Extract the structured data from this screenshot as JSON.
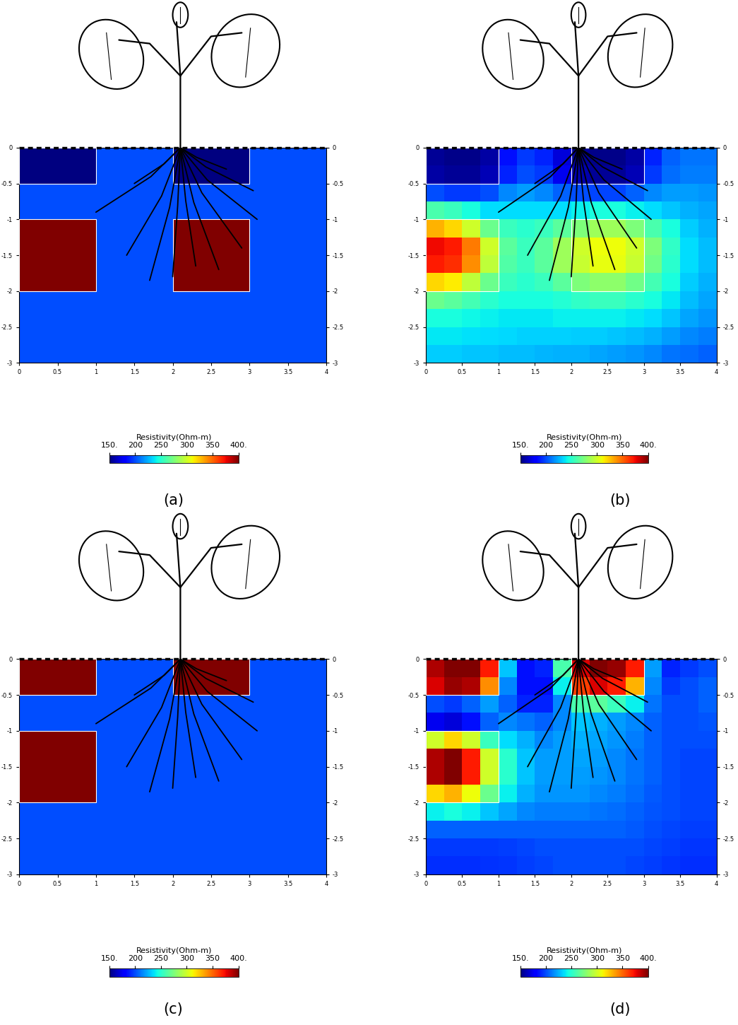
{
  "chart_data": [
    {
      "type": "heatmap",
      "title": "(a)",
      "x_edges": [
        0,
        0.5,
        1,
        1.5,
        2,
        2.5,
        3,
        3.5,
        4
      ],
      "y_edges": [
        0,
        -0.5,
        -1,
        -1.5,
        -2,
        -2.5,
        -3
      ],
      "cells": [
        [
          150,
          150,
          200,
          200,
          150,
          150,
          200,
          200
        ],
        [
          200,
          200,
          200,
          200,
          200,
          200,
          200,
          200
        ],
        [
          400,
          400,
          200,
          200,
          400,
          400,
          200,
          200
        ],
        [
          400,
          400,
          200,
          200,
          400,
          400,
          200,
          200
        ],
        [
          200,
          200,
          200,
          200,
          200,
          200,
          200,
          200
        ],
        [
          200,
          200,
          200,
          200,
          200,
          200,
          200,
          200
        ]
      ],
      "outlines": [
        [
          0,
          1,
          -0.5,
          0
        ],
        [
          2,
          3,
          -0.5,
          0
        ],
        [
          0,
          1,
          -2,
          -1
        ],
        [
          2,
          3,
          -2,
          -1
        ]
      ],
      "xlim": [
        0,
        4
      ],
      "ylim": [
        -3,
        0
      ],
      "xticks": [
        0,
        0.5,
        1,
        1.5,
        2,
        2.5,
        3,
        3.5,
        4
      ],
      "yticks": [
        -3,
        -2.5,
        -2,
        -1.5,
        -1,
        -0.5,
        0
      ],
      "colorbar": {
        "label": "Resistivity(Ohm-m)",
        "range": [
          150,
          400
        ],
        "ticks": [
          {
            "value": 150,
            "label": "150."
          },
          200,
          250,
          300,
          350,
          {
            "value": 400,
            "label": "400."
          }
        ]
      }
    },
    {
      "type": "heatmap",
      "title": "(b)",
      "x_edges": [
        0,
        0.25,
        0.5,
        0.75,
        1,
        1.25,
        1.5,
        1.75,
        2,
        2.25,
        2.5,
        2.75,
        3,
        3.25,
        3.5,
        3.75,
        4
      ],
      "y_edges": [
        0,
        -0.25,
        -0.5,
        -0.75,
        -1,
        -1.25,
        -1.5,
        -1.75,
        -2,
        -2.25,
        -2.5,
        -2.75,
        -3
      ],
      "cells": [
        [
          155,
          152,
          152,
          158,
          185,
          195,
          190,
          170,
          155,
          152,
          152,
          158,
          190,
          205,
          210,
          210
        ],
        [
          158,
          155,
          155,
          162,
          190,
          200,
          195,
          175,
          160,
          155,
          155,
          162,
          195,
          208,
          212,
          212
        ],
        [
          200,
          195,
          195,
          200,
          215,
          220,
          215,
          205,
          200,
          198,
          198,
          205,
          215,
          220,
          220,
          218
        ],
        [
          260,
          255,
          245,
          235,
          235,
          235,
          235,
          235,
          240,
          245,
          245,
          240,
          235,
          230,
          225,
          222
        ],
        [
          330,
          320,
          300,
          270,
          255,
          250,
          255,
          265,
          275,
          285,
          285,
          275,
          260,
          245,
          232,
          225
        ],
        [
          375,
          370,
          345,
          300,
          265,
          255,
          265,
          285,
          300,
          310,
          310,
          300,
          275,
          252,
          235,
          228
        ],
        [
          370,
          365,
          340,
          295,
          262,
          255,
          265,
          285,
          298,
          308,
          308,
          298,
          272,
          250,
          235,
          228
        ],
        [
          320,
          315,
          295,
          270,
          255,
          250,
          255,
          265,
          275,
          280,
          280,
          272,
          258,
          245,
          232,
          225
        ],
        [
          270,
          265,
          258,
          250,
          245,
          245,
          245,
          248,
          252,
          255,
          255,
          250,
          245,
          238,
          228,
          222
        ],
        [
          245,
          245,
          242,
          240,
          238,
          238,
          238,
          240,
          240,
          240,
          240,
          238,
          235,
          230,
          222,
          218
        ],
        [
          238,
          238,
          236,
          235,
          234,
          233,
          233,
          233,
          232,
          232,
          230,
          228,
          225,
          220,
          215,
          212
        ],
        [
          232,
          232,
          230,
          230,
          228,
          228,
          226,
          225,
          225,
          222,
          220,
          218,
          215,
          210,
          208,
          205
        ]
      ],
      "outlines": [
        [
          0,
          1,
          -0.5,
          0
        ],
        [
          2,
          3,
          -0.5,
          0
        ],
        [
          0,
          1,
          -2,
          -1
        ],
        [
          2,
          3,
          -2,
          -1
        ]
      ],
      "xlim": [
        0,
        4
      ],
      "ylim": [
        -3,
        0
      ],
      "xticks": [
        0,
        0.5,
        1,
        1.5,
        2,
        2.5,
        3,
        3.5,
        4
      ],
      "yticks": [
        -3,
        -2.5,
        -2,
        -1.5,
        -1,
        -0.5,
        0
      ],
      "colorbar": {
        "label": "Resistivity(Ohm-m)",
        "range": [
          150,
          400
        ],
        "ticks": [
          {
            "value": 150,
            "label": "150."
          },
          200,
          250,
          300,
          350,
          {
            "value": 400,
            "label": "400."
          }
        ]
      }
    },
    {
      "type": "heatmap",
      "title": "(c)",
      "x_edges": [
        0,
        0.5,
        1,
        1.5,
        2,
        2.5,
        3,
        3.5,
        4
      ],
      "y_edges": [
        0,
        -0.5,
        -1,
        -1.5,
        -2,
        -2.5,
        -3
      ],
      "cells": [
        [
          400,
          400,
          200,
          200,
          400,
          400,
          200,
          200
        ],
        [
          200,
          200,
          200,
          200,
          200,
          200,
          200,
          200
        ],
        [
          400,
          400,
          200,
          200,
          200,
          200,
          200,
          200
        ],
        [
          400,
          400,
          200,
          200,
          200,
          200,
          200,
          200
        ],
        [
          200,
          200,
          200,
          200,
          200,
          200,
          200,
          200
        ],
        [
          200,
          200,
          200,
          200,
          200,
          200,
          200,
          200
        ]
      ],
      "outlines": [
        [
          0,
          1,
          -0.5,
          0
        ],
        [
          2,
          3,
          -0.5,
          0
        ],
        [
          0,
          1,
          -2,
          -1
        ]
      ],
      "xlim": [
        0,
        4
      ],
      "ylim": [
        -3,
        0
      ],
      "xticks": [
        0,
        0.5,
        1,
        1.5,
        2,
        2.5,
        3,
        3.5,
        4
      ],
      "yticks": [
        -3,
        -2.5,
        -2,
        -1.5,
        -1,
        -0.5,
        0
      ],
      "colorbar": {
        "label": "Resistivity(Ohm-m)",
        "range": [
          150,
          400
        ],
        "ticks": [
          {
            "value": 150,
            "label": "150."
          },
          200,
          250,
          300,
          350,
          {
            "value": 400,
            "label": "400."
          }
        ]
      }
    },
    {
      "type": "heatmap",
      "title": "(d)",
      "x_edges": [
        0,
        0.25,
        0.5,
        0.75,
        1,
        1.25,
        1.5,
        1.75,
        2,
        2.25,
        2.5,
        2.75,
        3,
        3.25,
        3.5,
        3.75,
        4
      ],
      "y_edges": [
        0,
        -0.25,
        -0.5,
        -0.75,
        -1,
        -1.25,
        -1.5,
        -1.75,
        -2,
        -2.25,
        -2.5,
        -2.75,
        -3
      ],
      "cells": [
        [
          390,
          400,
          400,
          370,
          230,
          185,
          190,
          260,
          380,
          400,
          395,
          370,
          220,
          190,
          195,
          200
        ],
        [
          380,
          395,
          390,
          340,
          215,
          185,
          185,
          240,
          360,
          380,
          370,
          330,
          215,
          195,
          200,
          205
        ],
        [
          200,
          195,
          205,
          220,
          205,
          190,
          190,
          215,
          260,
          265,
          255,
          240,
          210,
          200,
          200,
          205
        ],
        [
          175,
          170,
          185,
          205,
          215,
          210,
          205,
          215,
          230,
          225,
          220,
          215,
          205,
          200,
          200,
          202
        ],
        [
          300,
          320,
          300,
          255,
          235,
          225,
          215,
          220,
          225,
          222,
          218,
          212,
          205,
          200,
          200,
          200
        ],
        [
          390,
          400,
          370,
          300,
          250,
          230,
          220,
          220,
          222,
          220,
          215,
          210,
          205,
          200,
          198,
          198
        ],
        [
          390,
          400,
          370,
          300,
          250,
          230,
          220,
          220,
          220,
          218,
          215,
          210,
          205,
          200,
          198,
          198
        ],
        [
          320,
          330,
          310,
          270,
          240,
          225,
          218,
          218,
          218,
          215,
          212,
          208,
          203,
          200,
          198,
          198
        ],
        [
          240,
          245,
          240,
          230,
          222,
          215,
          212,
          212,
          212,
          210,
          208,
          205,
          202,
          200,
          198,
          198
        ],
        [
          205,
          205,
          205,
          205,
          205,
          205,
          205,
          205,
          205,
          205,
          205,
          203,
          200,
          198,
          196,
          196
        ],
        [
          195,
          195,
          195,
          195,
          196,
          198,
          200,
          200,
          200,
          200,
          200,
          200,
          198,
          196,
          194,
          194
        ],
        [
          192,
          192,
          192,
          193,
          194,
          196,
          198,
          200,
          200,
          200,
          200,
          198,
          196,
          194,
          192,
          192
        ]
      ],
      "outlines": [
        [
          0,
          1,
          -0.5,
          0
        ],
        [
          2,
          3,
          -0.5,
          0
        ],
        [
          0,
          1,
          -2,
          -1
        ]
      ],
      "xlim": [
        0,
        4
      ],
      "ylim": [
        -3,
        0
      ],
      "xticks": [
        0,
        0.5,
        1,
        1.5,
        2,
        2.5,
        3,
        3.5,
        4
      ],
      "yticks": [
        -3,
        -2.5,
        -2,
        -1.5,
        -1,
        -0.5,
        0
      ],
      "colorbar": {
        "label": "Resistivity(Ohm-m)",
        "range": [
          150,
          400
        ],
        "ticks": [
          {
            "value": 150,
            "label": "150."
          },
          200,
          250,
          300,
          350,
          {
            "value": 400,
            "label": "400."
          }
        ]
      }
    }
  ]
}
